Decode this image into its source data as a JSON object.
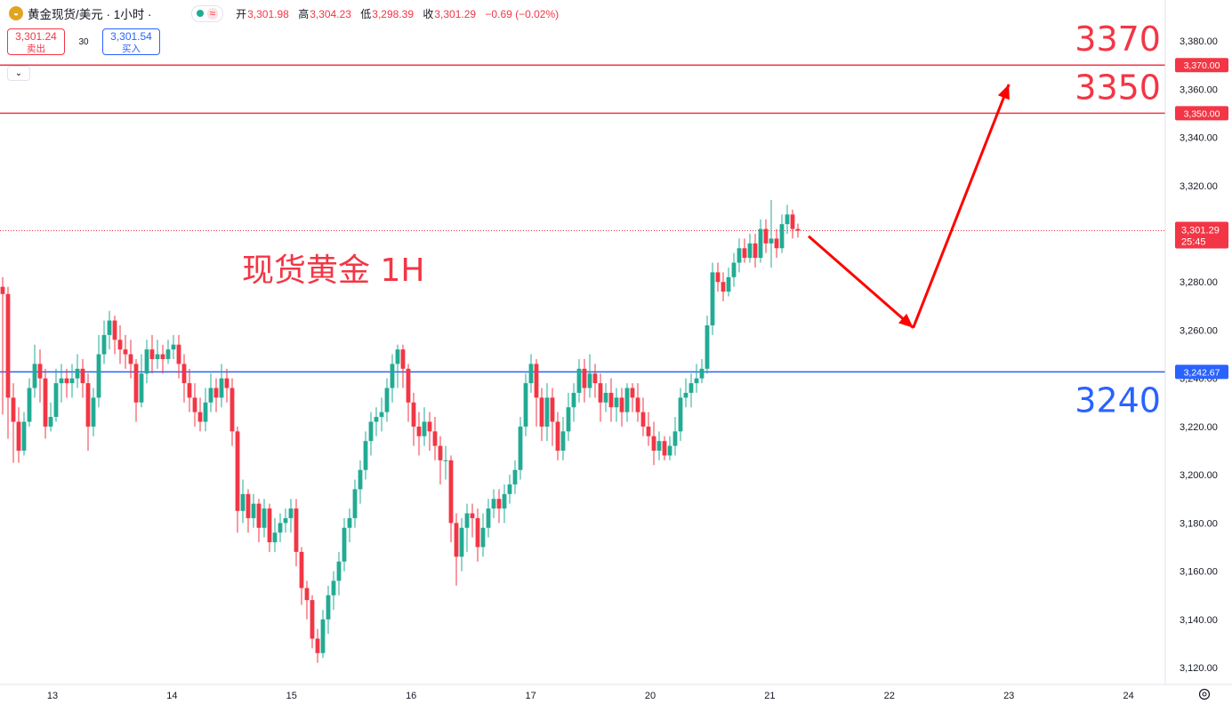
{
  "header": {
    "title": "黄金现货/美元 · 1小时 ·",
    "icons": [
      "gold-logo-icon",
      "status-dot-icon",
      "wave-icon"
    ],
    "ohlc": [
      {
        "label": "开",
        "value": "3,301.98"
      },
      {
        "label": "高",
        "value": "3,304.23"
      },
      {
        "label": "低",
        "value": "3,298.39"
      },
      {
        "label": "收",
        "value": "3,301.29"
      }
    ],
    "change": "−0.69 (−0.02%)"
  },
  "trade": {
    "sell_price": "3,301.24",
    "sell_label": "卖出",
    "spread": "30",
    "buy_price": "3,301.54",
    "buy_label": "买入"
  },
  "chart_data": {
    "type": "candlestick",
    "annotation": "现货黄金 1H",
    "ylim": [
      3113,
      3397
    ],
    "y_ticks": [
      3120,
      3140,
      3160,
      3180,
      3200,
      3220,
      3240,
      3260,
      3280,
      3300,
      3320,
      3340,
      3360,
      3380
    ],
    "x_ticks": [
      "13",
      "14",
      "15",
      "16",
      "17",
      "20",
      "21",
      "22",
      "23",
      "24"
    ],
    "current_price": {
      "value": 3301.29,
      "label": "3,301.29",
      "countdown": "25:45"
    },
    "lines": [
      {
        "value": 3370,
        "label": "3,370.00",
        "big_label": "3370",
        "color": "#f23645"
      },
      {
        "value": 3350,
        "label": "3,350.00",
        "big_label": "3350",
        "color": "#f23645"
      },
      {
        "value": 3242.67,
        "label": "3,242.67",
        "big_label": "3240",
        "color": "#2962ff"
      }
    ],
    "forecast_path": [
      {
        "day": 21.55,
        "price": 3299
      },
      {
        "day": 22.2,
        "price": 3261
      },
      {
        "day": 23.0,
        "price": 3362
      }
    ],
    "colors": {
      "up": "#22ab94",
      "down": "#f23645",
      "arrow": "#ff0000"
    },
    "candles": [
      [
        3278,
        3275,
        3282,
        3225
      ],
      [
        3275,
        3232,
        3278,
        3215
      ],
      [
        3232,
        3222,
        3238,
        3205
      ],
      [
        3222,
        3210,
        3228,
        3205
      ],
      [
        3210,
        3222,
        3226,
        3208
      ],
      [
        3222,
        3236,
        3240,
        3220
      ],
      [
        3236,
        3246,
        3254,
        3232
      ],
      [
        3246,
        3240,
        3252,
        3230
      ],
      [
        3240,
        3220,
        3244,
        3215
      ],
      [
        3220,
        3224,
        3230,
        3218
      ],
      [
        3224,
        3238,
        3244,
        3222
      ],
      [
        3238,
        3240,
        3246,
        3230
      ],
      [
        3240,
        3238,
        3244,
        3232
      ],
      [
        3238,
        3240,
        3246,
        3232
      ],
      [
        3240,
        3244,
        3250,
        3236
      ],
      [
        3244,
        3238,
        3248,
        3232
      ],
      [
        3238,
        3220,
        3242,
        3210
      ],
      [
        3220,
        3232,
        3236,
        3216
      ],
      [
        3232,
        3250,
        3258,
        3228
      ],
      [
        3250,
        3258,
        3264,
        3246
      ],
      [
        3258,
        3264,
        3268,
        3252
      ],
      [
        3264,
        3256,
        3266,
        3250
      ],
      [
        3256,
        3252,
        3262,
        3246
      ],
      [
        3252,
        3250,
        3258,
        3244
      ],
      [
        3250,
        3246,
        3256,
        3240
      ],
      [
        3246,
        3230,
        3248,
        3222
      ],
      [
        3230,
        3242,
        3250,
        3228
      ],
      [
        3242,
        3252,
        3256,
        3238
      ],
      [
        3252,
        3248,
        3258,
        3242
      ],
      [
        3248,
        3250,
        3256,
        3244
      ],
      [
        3250,
        3248,
        3254,
        3242
      ],
      [
        3248,
        3252,
        3256,
        3246
      ],
      [
        3252,
        3254,
        3258,
        3248
      ],
      [
        3254,
        3246,
        3258,
        3240
      ],
      [
        3246,
        3238,
        3250,
        3230
      ],
      [
        3238,
        3232,
        3244,
        3226
      ],
      [
        3232,
        3226,
        3238,
        3220
      ],
      [
        3226,
        3222,
        3232,
        3218
      ],
      [
        3222,
        3230,
        3236,
        3218
      ],
      [
        3230,
        3236,
        3242,
        3226
      ],
      [
        3236,
        3232,
        3240,
        3226
      ],
      [
        3232,
        3240,
        3246,
        3228
      ],
      [
        3240,
        3236,
        3244,
        3230
      ],
      [
        3236,
        3218,
        3240,
        3212
      ],
      [
        3218,
        3185,
        3220,
        3176
      ],
      [
        3185,
        3192,
        3198,
        3180
      ],
      [
        3192,
        3182,
        3194,
        3176
      ],
      [
        3182,
        3188,
        3192,
        3178
      ],
      [
        3188,
        3178,
        3190,
        3172
      ],
      [
        3178,
        3186,
        3190,
        3174
      ],
      [
        3186,
        3172,
        3188,
        3168
      ],
      [
        3172,
        3176,
        3182,
        3168
      ],
      [
        3176,
        3180,
        3184,
        3172
      ],
      [
        3180,
        3182,
        3186,
        3176
      ],
      [
        3182,
        3186,
        3190,
        3176
      ],
      [
        3186,
        3168,
        3190,
        3162
      ],
      [
        3168,
        3153,
        3170,
        3146
      ],
      [
        3153,
        3148,
        3156,
        3140
      ],
      [
        3148,
        3132,
        3150,
        3128
      ],
      [
        3132,
        3126,
        3136,
        3122
      ],
      [
        3126,
        3140,
        3144,
        3124
      ],
      [
        3140,
        3150,
        3154,
        3134
      ],
      [
        3150,
        3156,
        3160,
        3144
      ],
      [
        3156,
        3164,
        3168,
        3150
      ],
      [
        3164,
        3178,
        3182,
        3160
      ],
      [
        3178,
        3182,
        3186,
        3172
      ],
      [
        3182,
        3194,
        3198,
        3178
      ],
      [
        3194,
        3202,
        3206,
        3188
      ],
      [
        3202,
        3214,
        3218,
        3198
      ],
      [
        3214,
        3222,
        3226,
        3208
      ],
      [
        3222,
        3224,
        3228,
        3216
      ],
      [
        3224,
        3226,
        3232,
        3218
      ],
      [
        3226,
        3236,
        3240,
        3222
      ],
      [
        3236,
        3246,
        3250,
        3230
      ],
      [
        3246,
        3252,
        3254,
        3236
      ],
      [
        3252,
        3244,
        3254,
        3236
      ],
      [
        3244,
        3230,
        3246,
        3222
      ],
      [
        3230,
        3220,
        3234,
        3212
      ],
      [
        3220,
        3216,
        3226,
        3208
      ],
      [
        3216,
        3222,
        3228,
        3212
      ],
      [
        3222,
        3218,
        3226,
        3210
      ],
      [
        3218,
        3212,
        3224,
        3206
      ],
      [
        3212,
        3206,
        3216,
        3196
      ],
      [
        3206,
        3206,
        3212,
        3198
      ],
      [
        3206,
        3180,
        3208,
        3172
      ],
      [
        3180,
        3166,
        3184,
        3154
      ],
      [
        3166,
        3178,
        3182,
        3160
      ],
      [
        3178,
        3184,
        3188,
        3168
      ],
      [
        3184,
        3182,
        3188,
        3174
      ],
      [
        3182,
        3170,
        3186,
        3164
      ],
      [
        3170,
        3178,
        3184,
        3166
      ],
      [
        3178,
        3186,
        3190,
        3174
      ],
      [
        3186,
        3190,
        3194,
        3182
      ],
      [
        3190,
        3186,
        3194,
        3180
      ],
      [
        3186,
        3192,
        3196,
        3180
      ],
      [
        3192,
        3196,
        3200,
        3188
      ],
      [
        3196,
        3202,
        3206,
        3192
      ],
      [
        3202,
        3220,
        3224,
        3198
      ],
      [
        3220,
        3238,
        3242,
        3216
      ],
      [
        3238,
        3246,
        3250,
        3234
      ],
      [
        3246,
        3232,
        3248,
        3220
      ],
      [
        3232,
        3220,
        3236,
        3214
      ],
      [
        3220,
        3232,
        3238,
        3214
      ],
      [
        3232,
        3222,
        3236,
        3212
      ],
      [
        3222,
        3210,
        3226,
        3206
      ],
      [
        3210,
        3218,
        3224,
        3206
      ],
      [
        3218,
        3228,
        3234,
        3214
      ],
      [
        3228,
        3234,
        3238,
        3222
      ],
      [
        3234,
        3244,
        3248,
        3230
      ],
      [
        3244,
        3236,
        3248,
        3230
      ],
      [
        3236,
        3242,
        3250,
        3232
      ],
      [
        3242,
        3238,
        3246,
        3232
      ],
      [
        3238,
        3230,
        3242,
        3222
      ],
      [
        3230,
        3234,
        3238,
        3226
      ],
      [
        3234,
        3228,
        3240,
        3222
      ],
      [
        3228,
        3232,
        3236,
        3222
      ],
      [
        3232,
        3226,
        3236,
        3220
      ],
      [
        3226,
        3236,
        3238,
        3222
      ],
      [
        3236,
        3232,
        3238,
        3226
      ],
      [
        3232,
        3226,
        3238,
        3222
      ],
      [
        3226,
        3220,
        3232,
        3216
      ],
      [
        3220,
        3216,
        3226,
        3212
      ],
      [
        3216,
        3210,
        3222,
        3204
      ],
      [
        3210,
        3214,
        3218,
        3206
      ],
      [
        3214,
        3208,
        3216,
        3206
      ],
      [
        3208,
        3212,
        3216,
        3206
      ],
      [
        3212,
        3218,
        3224,
        3208
      ],
      [
        3218,
        3232,
        3236,
        3214
      ],
      [
        3232,
        3234,
        3240,
        3228
      ],
      [
        3234,
        3238,
        3242,
        3228
      ],
      [
        3238,
        3240,
        3246,
        3234
      ],
      [
        3240,
        3244,
        3248,
        3238
      ],
      [
        3244,
        3262,
        3266,
        3242
      ],
      [
        3262,
        3284,
        3288,
        3258
      ],
      [
        3284,
        3280,
        3288,
        3276
      ],
      [
        3280,
        3276,
        3284,
        3272
      ],
      [
        3276,
        3282,
        3286,
        3274
      ],
      [
        3282,
        3288,
        3292,
        3278
      ],
      [
        3288,
        3294,
        3298,
        3284
      ],
      [
        3294,
        3290,
        3298,
        3288
      ],
      [
        3290,
        3296,
        3300,
        3288
      ],
      [
        3296,
        3290,
        3300,
        3286
      ],
      [
        3290,
        3302,
        3306,
        3288
      ],
      [
        3302,
        3296,
        3306,
        3292
      ],
      [
        3296,
        3298,
        3314,
        3286
      ],
      [
        3298,
        3294,
        3302,
        3290
      ],
      [
        3294,
        3304,
        3308,
        3292
      ],
      [
        3304,
        3308,
        3312,
        3300
      ],
      [
        3308,
        3302,
        3310,
        3298
      ],
      [
        3302,
        3301.29,
        3304.23,
        3298.39
      ]
    ]
  }
}
